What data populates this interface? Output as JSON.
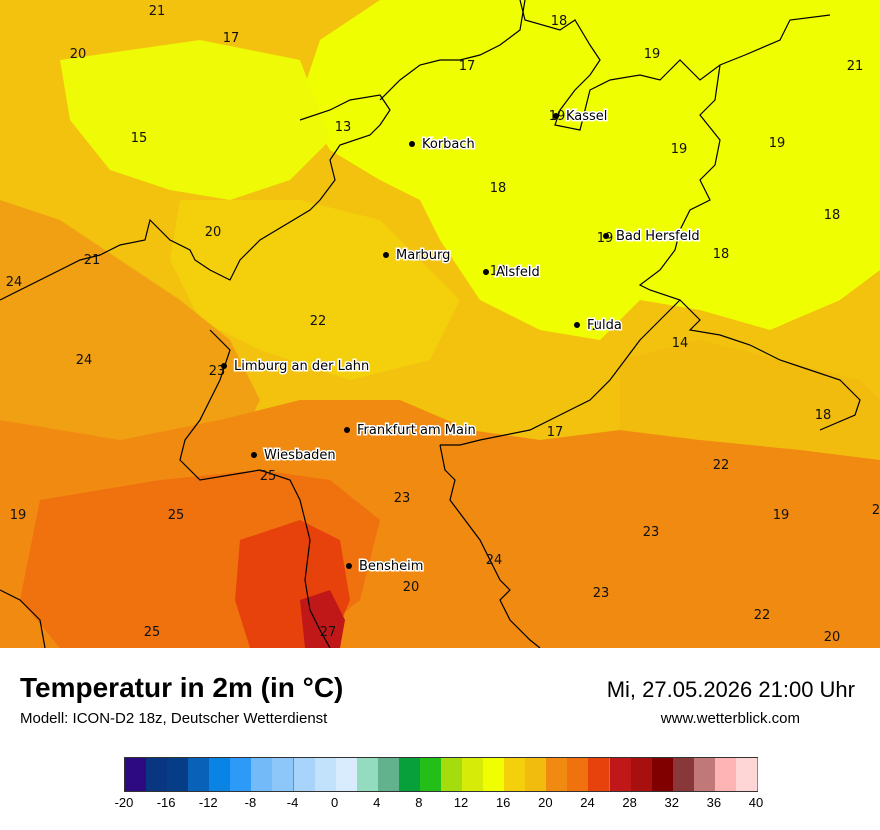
{
  "title": "Temperatur in 2m (in °C)",
  "subtitle": "Modell: ICON-D2 18z, Deutscher Wetterdienst",
  "datetime": "Mi, 27.05.2026 21:00 Uhr",
  "website": "www.wetterblick.com",
  "cities": [
    {
      "name": "Kassel"
    },
    {
      "name": "Korbach"
    },
    {
      "name": "Bad Hersfeld"
    },
    {
      "name": "Marburg"
    },
    {
      "name": "Alsfeld"
    },
    {
      "name": "Fulda"
    },
    {
      "name": "Limburg an der Lahn"
    },
    {
      "name": "Frankfurt am Main"
    },
    {
      "name": "Wiesbaden"
    },
    {
      "name": "Bensheim"
    }
  ],
  "temperature_labels": [
    "21",
    "20",
    "17",
    "18",
    "19",
    "21",
    "17",
    "19",
    "13",
    "15",
    "19",
    "19",
    "18",
    "18",
    "20",
    "19",
    "18",
    "21",
    "24",
    "18",
    "22",
    "20",
    "14",
    "24",
    "23",
    "18",
    "17",
    "22",
    "25",
    "19",
    "25",
    "23",
    "19",
    "2",
    "23",
    "24",
    "20",
    "23",
    "22",
    "25",
    "27",
    "20"
  ],
  "legend": {
    "colors": [
      "#2e0a82",
      "#0a3580",
      "#053e86",
      "#0a62b8",
      "#0a84e4",
      "#2c9af6",
      "#72baf8",
      "#8dc6f8",
      "#a8d4fb",
      "#c2e2fc",
      "#d8ecfe",
      "#93dcc0",
      "#62b28e",
      "#08a03a",
      "#24be18",
      "#a4dc0e",
      "#d6ec08",
      "#f0fe02",
      "#f4d00c",
      "#f2bc0e",
      "#f18a10",
      "#f0720e",
      "#e8420c",
      "#c01818",
      "#a81010",
      "#800000",
      "#883838",
      "#c07878",
      "#feb4b4",
      "#ffd6d6"
    ],
    "ticks": [
      "-20",
      "-16",
      "-12",
      "-8",
      "-4",
      "0",
      "4",
      "8",
      "12",
      "16",
      "20",
      "24",
      "28",
      "32",
      "36",
      "40"
    ]
  }
}
